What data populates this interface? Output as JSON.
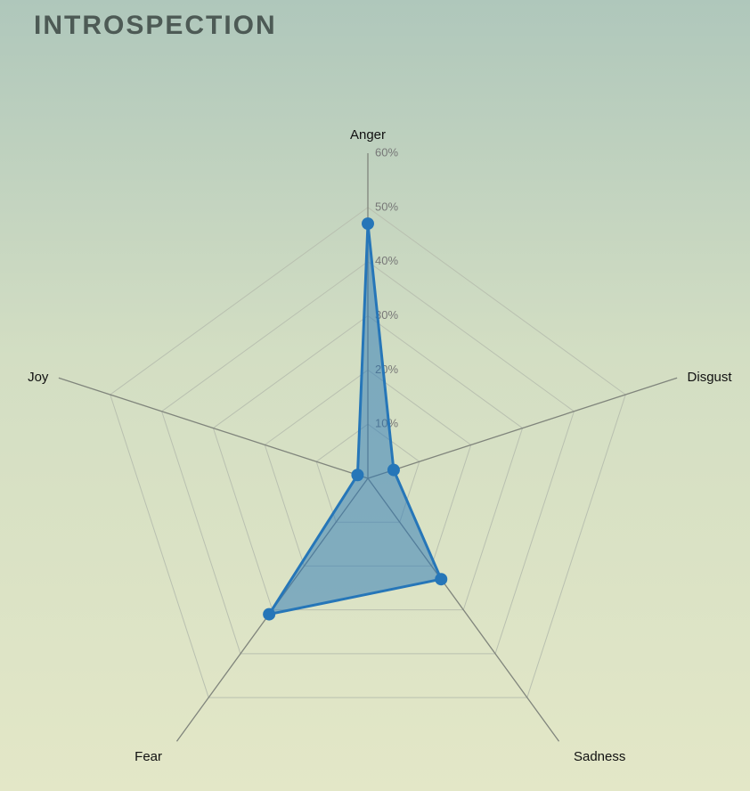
{
  "chart_data": {
    "type": "radar",
    "title": "INTROSPECTION",
    "categories": [
      "Anger",
      "Disgust",
      "Sadness",
      "Fear",
      "Joy"
    ],
    "values": [
      47,
      5,
      23,
      31,
      2
    ],
    "color": "#2676b8",
    "ylim": [
      0,
      60
    ],
    "yticks": [
      {
        "value": 10,
        "label": "10%"
      },
      {
        "value": 20,
        "label": "20%"
      },
      {
        "value": 30,
        "label": "30%"
      },
      {
        "value": 40,
        "label": "40%"
      },
      {
        "value": 50,
        "label": "50%"
      },
      {
        "value": 60,
        "label": "60%"
      }
    ],
    "grid": true
  }
}
